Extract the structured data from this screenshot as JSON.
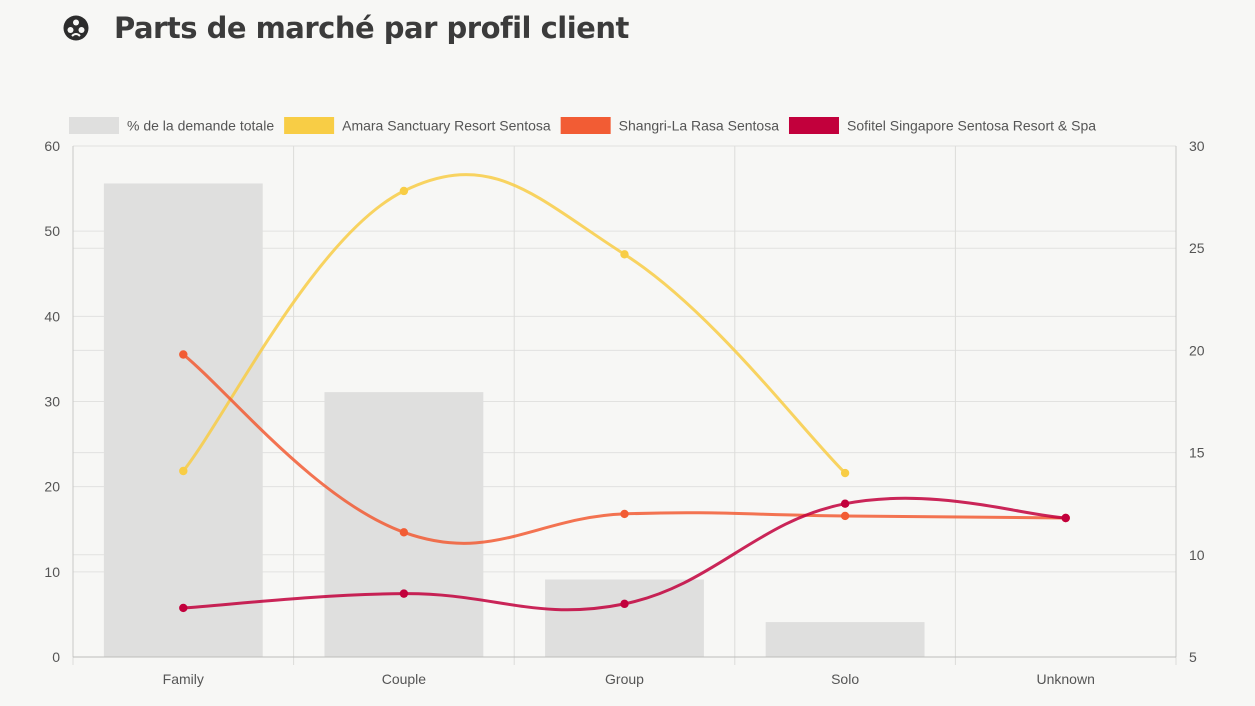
{
  "page": {
    "title": "Parts de marché par profil client",
    "title_icon": "market-share-icon"
  },
  "chart_data": {
    "type": "bar",
    "categories": [
      "Family",
      "Couple",
      "Group",
      "Solo",
      "Unknown"
    ],
    "left_axis": {
      "range": [
        0,
        60
      ],
      "ticks": [
        0,
        10,
        20,
        30,
        40,
        50,
        60
      ]
    },
    "right_axis": {
      "range": [
        5,
        30
      ],
      "ticks": [
        5,
        10,
        15,
        20,
        25,
        30
      ]
    },
    "grid": true,
    "legend_position": "top",
    "series": [
      {
        "name": "% de la demande totale",
        "kind": "bar",
        "axis": "left",
        "color": "#dfdfde",
        "values": [
          55.6,
          31.1,
          9.1,
          4.1,
          0
        ]
      },
      {
        "name": "Amara Sanctuary Resort Sentosa",
        "kind": "line",
        "axis": "right",
        "color": "#f8cd45",
        "values": [
          14.1,
          27.8,
          24.7,
          14.0,
          null
        ]
      },
      {
        "name": "Shangri-La Rasa Sentosa",
        "kind": "line",
        "axis": "right",
        "color": "#f25c34",
        "values": [
          19.8,
          11.1,
          12.0,
          11.9,
          11.8
        ]
      },
      {
        "name": "Sofitel Singapore Sentosa Resort & Spa",
        "kind": "line",
        "axis": "right",
        "color": "#c2003c",
        "values": [
          7.4,
          8.1,
          7.6,
          12.5,
          11.8
        ]
      }
    ]
  }
}
